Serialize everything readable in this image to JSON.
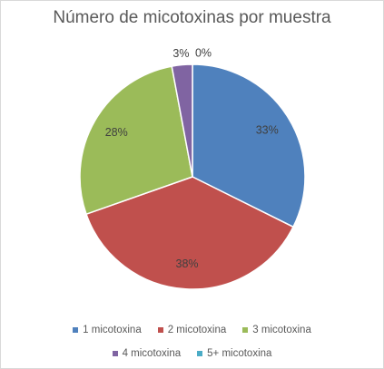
{
  "chart_data": {
    "type": "pie",
    "title": "Número de micotoxinas por muestra",
    "categories": [
      "1 micotoxina",
      "2 micotoxina",
      "3 micotoxina",
      "4 micotoxina",
      "5+ micotoxina"
    ],
    "values": [
      33,
      38,
      28,
      3,
      0
    ],
    "data_labels": [
      "33%",
      "38%",
      "28%",
      "3%",
      "0%"
    ],
    "colors": [
      "#4f81bd",
      "#c0504d",
      "#9bbb59",
      "#8064a2",
      "#4bacc6"
    ],
    "legend_position": "bottom"
  }
}
